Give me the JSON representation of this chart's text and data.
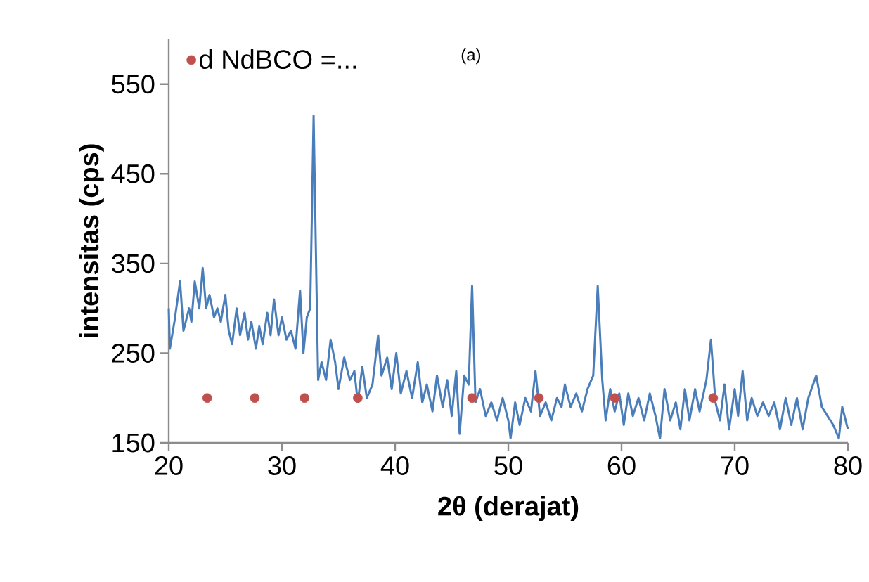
{
  "chart_data": {
    "type": "line",
    "xlabel": "2θ (derajat)",
    "ylabel": "intensitas (cps)",
    "annotations": [
      "(a)"
    ],
    "xlim": [
      20,
      80
    ],
    "xticks": [
      20,
      30,
      40,
      50,
      60,
      70,
      80
    ],
    "ylim": [
      150,
      600
    ],
    "yticks": [
      150,
      250,
      350,
      450,
      550
    ],
    "grid": false,
    "legend": "top left",
    "series": [
      {
        "color": "#4a7ebb",
        "line_style": "solid",
        "marker": "none",
        "x": [
          20.0,
          20.1,
          20.5,
          21,
          21.3,
          21.8,
          22,
          22.3,
          22.7,
          23,
          23.3,
          23.6,
          24,
          24.3,
          24.6,
          25,
          25.3,
          25.6,
          26,
          26.3,
          26.7,
          27,
          27.3,
          27.7,
          28,
          28.3,
          28.7,
          29,
          29.3,
          29.7,
          30,
          30.4,
          30.8,
          31.2,
          31.6,
          31.9,
          32.2,
          32.5,
          32.8,
          33.1,
          33.2,
          33.5,
          33.9,
          34.3,
          34.7,
          35,
          35.5,
          36,
          36.4,
          36.7,
          37.1,
          37.5,
          38,
          38.5,
          38.8,
          39.3,
          39.7,
          40.1,
          40.5,
          41,
          41.5,
          42,
          42.4,
          42.8,
          43.3,
          43.7,
          44.2,
          44.6,
          45,
          45.4,
          45.7,
          46.1,
          46.5,
          46.8,
          47.1,
          47.5,
          48,
          48.5,
          49,
          49.5,
          50,
          50.2,
          50.6,
          51,
          51.5,
          52,
          52.4,
          52.8,
          53.3,
          53.8,
          54.3,
          54.7,
          55,
          55.5,
          56,
          56.5,
          57,
          57.5,
          57.9,
          58.3,
          58.6,
          59,
          59.4,
          59.8,
          60.2,
          60.6,
          61,
          61.5,
          62,
          62.5,
          63,
          63.4,
          63.8,
          64.3,
          64.8,
          65.2,
          65.6,
          66,
          66.5,
          66.9,
          67.5,
          67.9,
          68.3,
          68.7,
          69.1,
          69.5,
          70,
          70.3,
          70.7,
          71.1,
          71.5,
          72,
          72.5,
          73,
          73.5,
          74,
          74.5,
          75,
          75.5,
          76,
          76.5,
          77.2,
          77.7,
          78.2,
          78.7,
          79.2,
          79.5,
          80
        ],
        "values": [
          300,
          255,
          285,
          330,
          275,
          300,
          285,
          330,
          300,
          345,
          300,
          315,
          290,
          300,
          285,
          315,
          275,
          260,
          300,
          270,
          295,
          265,
          285,
          255,
          280,
          260,
          295,
          270,
          310,
          270,
          290,
          265,
          275,
          255,
          320,
          250,
          290,
          300,
          515,
          290,
          220,
          240,
          220,
          265,
          240,
          210,
          245,
          220,
          230,
          195,
          235,
          200,
          215,
          270,
          225,
          245,
          210,
          250,
          205,
          230,
          200,
          240,
          195,
          215,
          185,
          225,
          190,
          220,
          180,
          230,
          160,
          225,
          215,
          325,
          195,
          210,
          180,
          195,
          175,
          200,
          175,
          155,
          195,
          170,
          200,
          185,
          230,
          180,
          195,
          175,
          200,
          190,
          215,
          190,
          205,
          185,
          210,
          225,
          325,
          220,
          175,
          210,
          185,
          205,
          170,
          205,
          180,
          200,
          175,
          205,
          180,
          155,
          210,
          175,
          195,
          165,
          210,
          175,
          210,
          185,
          220,
          265,
          195,
          175,
          215,
          165,
          210,
          180,
          230,
          175,
          200,
          180,
          195,
          180,
          195,
          165,
          200,
          170,
          200,
          165,
          200,
          225,
          190,
          180,
          170,
          155,
          190,
          165
        ]
      },
      {
        "type": "scatter",
        "name": "d NdBCO =...",
        "color": "#c0504d",
        "marker": "circle",
        "x": [
          23.4,
          27.6,
          32.0,
          36.7,
          46.8,
          52.7,
          59.4,
          68.1
        ],
        "values": [
          200,
          200,
          200,
          200,
          200,
          200,
          200,
          200
        ]
      }
    ]
  }
}
